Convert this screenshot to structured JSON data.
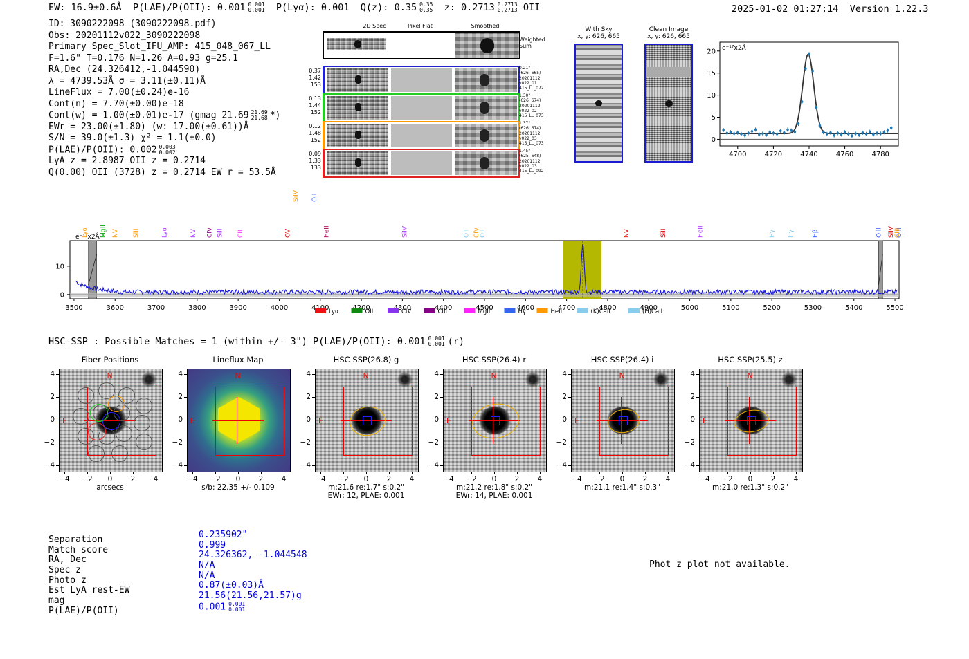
{
  "header": {
    "summary": "EW: 16.9±0.6Å  P(LAE)/P(OII): 0.001 0.001/0.001  P(Lyα): 0.001  Q(z): 0.35 0.35/0.35  z: 0.2713 0.2713/0.2713 OII",
    "ew": "EW: 16.9±0.6Å",
    "plae": "P(LAE)/P(OII): 0.001",
    "plae_sup": "0.001",
    "plae_sub": "0.001",
    "plya": "P(Lyα): 0.001",
    "qz": "Q(z): 0.35",
    "qz_sup": "0.35",
    "qz_sub": "0.35",
    "z": "z: 0.2713",
    "z_sup": "0.2713",
    "z_sub": "0.2713",
    "z_line": "OII",
    "timestamp": "2025-01-02 01:27:14",
    "version": "Version 1.22.3"
  },
  "info": {
    "id": "ID: 3090222098 (3090222098.pdf)",
    "obs": "Obs: 20201112v022_3090222098",
    "primary": "Primary Spec_Slot_IFU_AMP: 415_048_067_LL",
    "params": "F=1.6\"  T=0.176  N=1.26  A=0.93  g=25.1",
    "radec": "RA,Dec (24.326412,-1.044590)",
    "lambda": "λ = 4739.53Å  σ = 3.11(±0.11)Å",
    "lineflux": "LineFlux = 7.00(±0.24)e-16",
    "contn": "Cont(n) = 7.70(±0.00)e-18",
    "contw": "Cont(w) = 1.00(±0.01)e-17 (gmag 21.69",
    "contw_sup": "21.69",
    "contw_sub": "21.68",
    "contw_tail": "*)",
    "ewr": "EWr = 23.00(±1.80) (w: 17.00(±0.61))Å",
    "sn": "S/N = 39.0(±1.3)  χ² = 1.1(±0.0)",
    "plae": "P(LAE)/P(OII): 0.002",
    "plae_sup": "0.003",
    "plae_sub": "0.002",
    "lya_z": "LyA z = 2.8987  OII z = 0.2714",
    "q": "Q(0.00) OII (3728) z = 0.2714  EW r = 53.5Å"
  },
  "spec2d": {
    "col_labels": [
      "2D Spec",
      "Pixel Flat",
      "Smoothed"
    ],
    "weighted_label": "Weighted Sum",
    "rows": [
      {
        "left": [
          "0.37",
          "1.42",
          "153"
        ],
        "right": [
          "0.21\"",
          "(626, 665)",
          "20201112",
          "v022_01",
          "415_LL_072"
        ],
        "color": "#2222cc"
      },
      {
        "left": [
          "0.13",
          "1.44",
          "152"
        ],
        "right": [
          "1.30\"",
          "(626, 674)",
          "20201112",
          "v022_02",
          "415_LL_073"
        ],
        "color": "#22cc22"
      },
      {
        "left": [
          "0.12",
          "1.48",
          "152"
        ],
        "right": [
          "1.37\"",
          "(626, 674)",
          "20201112",
          "v022_03",
          "415_LL_073"
        ],
        "color": "#ff9900"
      },
      {
        "left": [
          "0.09",
          "1.33",
          "133"
        ],
        "right": [
          "1.45\"",
          "(625, 648)",
          "20201112",
          "v022_03",
          "415_LL_092"
        ],
        "color": "#dd2222"
      }
    ]
  },
  "sky": {
    "with_sky_title": "With Sky",
    "with_sky_xy": "x, y: 626, 665",
    "clean_title": "Clean Image",
    "clean_xy": "x, y: 626, 665"
  },
  "fit_plot": {
    "unit_label": "e⁻¹⁷x2Å",
    "x_ticks": [
      "4700",
      "4720",
      "4740",
      "4760",
      "4780"
    ],
    "y_ticks": [
      "0",
      "5",
      "10",
      "15",
      "20"
    ]
  },
  "full_spec": {
    "unit_label": "e⁻¹⁷x2Å",
    "y_ticks": [
      "0",
      "10"
    ],
    "x_ticks": [
      "3500",
      "3600",
      "3700",
      "3800",
      "3900",
      "4000",
      "4100",
      "4200",
      "4300",
      "4400",
      "4500",
      "4600",
      "4700",
      "4800",
      "4900",
      "5000",
      "5100",
      "5200",
      "5300",
      "5400",
      "5500"
    ],
    "line_labels": [
      {
        "t": "Lyα",
        "c": "#ff9900"
      },
      {
        "t": "MgII",
        "c": "#00aa00"
      },
      {
        "t": "NV",
        "c": "#ff9900"
      },
      {
        "t": "SiII",
        "c": "#ff9900"
      },
      {
        "t": "Lyα",
        "c": "#aa33ff"
      },
      {
        "t": "NV",
        "c": "#aa33ff"
      },
      {
        "t": "CIV",
        "c": "#880088"
      },
      {
        "t": "SiII",
        "c": "#aa33ff"
      },
      {
        "t": "CII",
        "c": "#ff33ff"
      },
      {
        "t": "OVI",
        "c": "#dd0000"
      },
      {
        "t": "SiIV",
        "c": "#ff9900"
      },
      {
        "t": "OII",
        "c": "#3355ff"
      },
      {
        "t": "HeII",
        "c": "#aa0055"
      },
      {
        "t": "SiIV",
        "c": "#aa33ff"
      },
      {
        "t": "OII",
        "c": "#88ccee"
      },
      {
        "t": "CIV",
        "c": "#ff9900"
      },
      {
        "t": "OII",
        "c": "#88ccee"
      },
      {
        "t": "NV",
        "c": "#dd0000"
      },
      {
        "t": "SiII",
        "c": "#dd0000"
      },
      {
        "t": "HeII",
        "c": "#aa33ff"
      },
      {
        "t": "Hγ",
        "c": "#88ccee"
      },
      {
        "t": "Hγ",
        "c": "#88ccee"
      },
      {
        "t": "Hβ",
        "c": "#3355ff"
      },
      {
        "t": "OIII",
        "c": "#3355ff"
      },
      {
        "t": "SiIV",
        "c": "#dd0000"
      },
      {
        "t": "OIII",
        "c": "#3355ff"
      },
      {
        "t": "CIII",
        "c": "#ff9900"
      }
    ],
    "legend": [
      {
        "label": "Lyα",
        "color": "#ee1111"
      },
      {
        "label": "OII",
        "color": "#118811"
      },
      {
        "label": "CIV",
        "color": "#8833ee"
      },
      {
        "label": "CIII",
        "color": "#880088"
      },
      {
        "label": "MgII",
        "color": "#ff22ff"
      },
      {
        "label": "Hγ",
        "color": "#3366ee"
      },
      {
        "label": "HeII",
        "color": "#ff9900"
      },
      {
        "label": "(K)CaII",
        "color": "#88ccee"
      },
      {
        "label": "(H)CaII",
        "color": "#88ccee"
      }
    ]
  },
  "hsc": {
    "title": "HSC-SSP : Possible Matches = 1 (within +/- 3\")  P(LAE)/P(OII): 0.001",
    "title_sup": "0.001",
    "title_sub": "0.001",
    "title_tail": "(r)",
    "cutouts": [
      {
        "title": "Fiber Positions",
        "cap1": "arcsecs",
        "cap2": ""
      },
      {
        "title": "Lineflux Map",
        "cap1": "s/b: 22.35 +/- 0.109",
        "cap2": ""
      },
      {
        "title": "HSC SSP(26.8) g",
        "cap1": "m:21.6  re:1.7\"  s:0.2\"",
        "cap2": "EWr: 12, PLAE: 0.001"
      },
      {
        "title": "HSC SSP(26.4) r",
        "cap1": "m:21.2  re:1.8\"  s:0.2\"",
        "cap2": "EWr: 14, PLAE: 0.001"
      },
      {
        "title": "HSC SSP(26.4) i",
        "cap1": "m:21.1  re:1.4\"  s:0.3\"",
        "cap2": ""
      },
      {
        "title": "HSC SSP(25.5) z",
        "cap1": "m:21.0  re:1.3\"  s:0.2\"",
        "cap2": ""
      }
    ],
    "y_ticks": [
      "4",
      "2",
      "0",
      "−2",
      "−4"
    ],
    "x_ticks": [
      "−4",
      "−2",
      "0",
      "2",
      "4"
    ],
    "north": "N",
    "east": "E"
  },
  "match": {
    "labels": [
      "Separation",
      "Match score",
      "RA, Dec",
      "Spec z",
      "Photo z",
      "Est LyA rest-EW",
      "mag",
      "P(LAE)/P(OII)"
    ],
    "values": [
      "0.235902\"",
      "0.999",
      "24.326362, -1.044548",
      "N/A",
      "N/A",
      "0.87(±0.03)Å",
      "21.56(21.56,21.57)g",
      "0.001"
    ],
    "plae_sup": "0.001",
    "plae_sub": "0.001"
  },
  "photz_note": "Phot z plot not available.",
  "chart_data": [
    {
      "type": "scatter",
      "title": "",
      "xlabel": "",
      "ylabel": "e⁻¹⁷x2Å",
      "xlim": [
        4690,
        4790
      ],
      "ylim": [
        -1.5,
        22
      ],
      "x": [
        4692,
        4694,
        4696,
        4698,
        4700,
        4702,
        4704,
        4706,
        4708,
        4710,
        4712,
        4714,
        4716,
        4718,
        4720,
        4722,
        4724,
        4726,
        4728,
        4730,
        4732,
        4734,
        4736,
        4738,
        4740,
        4742,
        4744,
        4746,
        4748,
        4750,
        4752,
        4754,
        4756,
        4758,
        4760,
        4762,
        4764,
        4766,
        4768,
        4770,
        4772,
        4774,
        4776,
        4778,
        4780,
        4782,
        4784,
        4786
      ],
      "y": [
        2.1,
        1.4,
        1.6,
        1.3,
        1.5,
        1.2,
        0.9,
        1.4,
        1.8,
        2.2,
        1.1,
        1.3,
        1.0,
        1.6,
        1.4,
        1.2,
        1.9,
        1.5,
        2.2,
        2.0,
        1.7,
        3.5,
        8.5,
        16.0,
        19.3,
        15.5,
        7.2,
        3.1,
        1.6,
        1.2,
        1.5,
        0.9,
        1.4,
        1.1,
        1.6,
        1.2,
        0.8,
        1.3,
        1.0,
        1.5,
        1.2,
        1.7,
        1.1,
        1.4,
        1.3,
        1.6,
        2.0,
        2.6
      ],
      "model_center": 4739.5,
      "model_sigma": 3.11,
      "model_amp": 18.0,
      "model_base": 1.3
    },
    {
      "type": "line",
      "title": "",
      "xlabel": "",
      "ylabel": "e⁻¹⁷x2Å",
      "xlim": [
        3490,
        5510
      ],
      "ylim": [
        -1.5,
        19
      ],
      "peak_wavelength": 4739.5,
      "peak_value": 17.0,
      "highlight_band": [
        4692,
        4785
      ],
      "masked_bands": [
        [
          3535,
          3555
        ],
        [
          5460,
          5470
        ]
      ]
    }
  ]
}
